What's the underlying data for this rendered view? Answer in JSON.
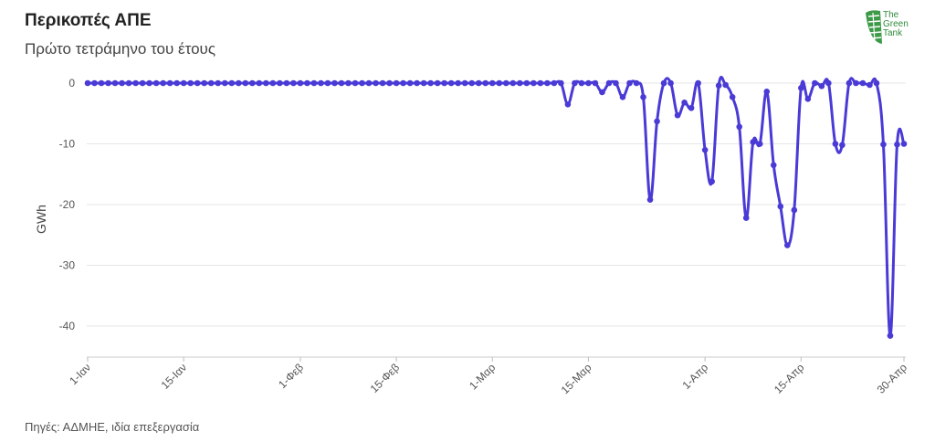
{
  "header": {
    "title": "Περικοπές ΑΠΕ",
    "subtitle": "Πρώτο τετράμηνο του έτους"
  },
  "footer": {
    "source": "Πηγές: ΑΔΜΗΕ, ιδία επεξεργασία"
  },
  "logo": {
    "text_line1": "The",
    "text_line2": "Green",
    "text_line3": "Tank",
    "color": "#2e8b3a"
  },
  "colors": {
    "line": "#4a3ad6",
    "grid": "#e6e6e6"
  },
  "chart_data": {
    "type": "line",
    "title": "Περικοπές ΑΠΕ",
    "subtitle": "Πρώτο τετράμηνο του έτους",
    "ylabel": "GWh",
    "xlabel": "",
    "ylim": [
      -45,
      1
    ],
    "yticks": [
      0,
      -10,
      -20,
      -30,
      -40
    ],
    "xticks": [
      {
        "day": 1,
        "label": "1-Ιαν"
      },
      {
        "day": 15,
        "label": "15-Ιαν"
      },
      {
        "day": 32,
        "label": "1-Φεβ"
      },
      {
        "day": 46,
        "label": "15-Φεβ"
      },
      {
        "day": 60,
        "label": "1-Μαρ"
      },
      {
        "day": 74,
        "label": "15-Μαρ"
      },
      {
        "day": 91,
        "label": "1-Απρ"
      },
      {
        "day": 105,
        "label": "15-Απρ"
      },
      {
        "day": 120,
        "label": "30-Απρ"
      }
    ],
    "grid": true,
    "series": [
      {
        "values": [
          0,
          0,
          0,
          0,
          0,
          0,
          0,
          0,
          0,
          0,
          0,
          0,
          0,
          0,
          0,
          0,
          0,
          0,
          0,
          0,
          0,
          0,
          0,
          0,
          0,
          0,
          0,
          0,
          0,
          0,
          0,
          0,
          0,
          0,
          0,
          0,
          0,
          0,
          0,
          0,
          0,
          0,
          0,
          0,
          0,
          0,
          0,
          0,
          0,
          0,
          0,
          0,
          0,
          0,
          0,
          0,
          0,
          0,
          0,
          0,
          0,
          0,
          0,
          0,
          0,
          0,
          0,
          0,
          0,
          0,
          -3.5,
          0,
          0,
          0,
          0,
          -1.5,
          0,
          0,
          -2.3,
          0,
          0,
          -2.3,
          -19.2,
          -6.3,
          0,
          0,
          -5.3,
          -3.2,
          -4.1,
          0,
          -11,
          -16.2,
          -0.4,
          -0.3,
          -2.3,
          -7.2,
          -22.2,
          -9.7,
          -10,
          -1.4,
          -13.5,
          -20.3,
          -26.7,
          -20.9,
          -0.8,
          -2.6,
          0,
          -0.5,
          0,
          -10,
          -10.2,
          0,
          0,
          0,
          -0.3,
          0,
          -10.1,
          -41.6,
          -10.1,
          -10
        ]
      }
    ]
  }
}
